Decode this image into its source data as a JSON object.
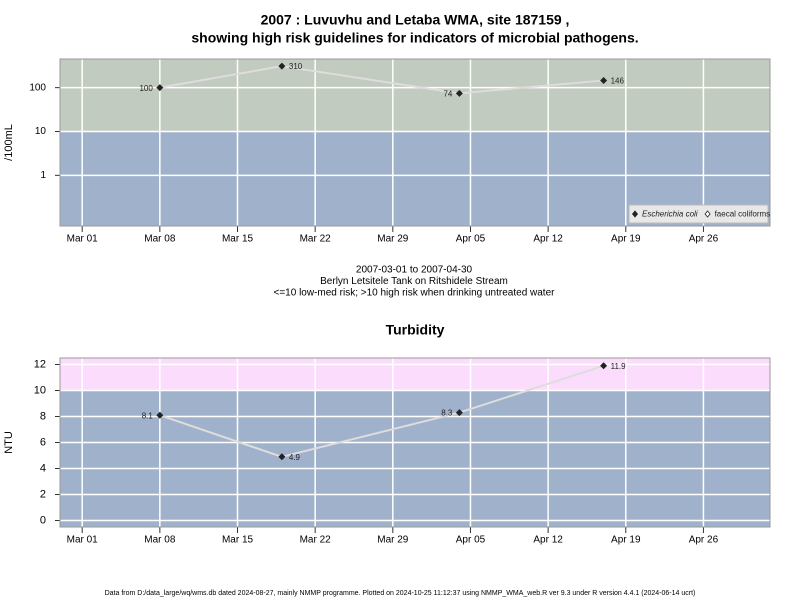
{
  "chart_data": [
    {
      "type": "line",
      "title": [
        "2007 : Luvuvhu and Letaba WMA, site 187159 ,",
        "showing high risk guidelines for indicators of microbial pathogens."
      ],
      "ylabel": "/100mL",
      "log_scale": true,
      "grid": true,
      "x": [
        "Mar 08",
        "Mar 19",
        "Apr 04",
        "Apr 17"
      ],
      "series": [
        {
          "name": "Escherichia coli",
          "color": "#222222",
          "line_color": "#dddddd",
          "values": [
            100,
            310,
            74,
            146
          ]
        },
        {
          "name": "faecal coliforms",
          "color": "#222222",
          "values": [
            null,
            null,
            null,
            null
          ]
        }
      ],
      "xlim": [
        "Feb 27",
        "May 02"
      ],
      "xticks": [
        "Mar 01",
        "Mar 08",
        "Mar 15",
        "Mar 22",
        "Mar 29",
        "Apr 05",
        "Apr 12",
        "Apr 19",
        "Apr 26"
      ],
      "ylim": [
        0.07,
        450
      ],
      "yticks": [
        1,
        10,
        100
      ],
      "threshold": 10,
      "band_colors": [
        "#a0b2cb",
        "#c2cbbf"
      ],
      "legend": "bottom-right",
      "notes": [
        "2007-03-01 to 2007-04-30",
        "Berlyn Letsitele Tank on Ritshidele Stream",
        "<=10 low-med risk; >10 high risk when drinking untreated water"
      ]
    },
    {
      "type": "line",
      "title": [
        "Turbidity"
      ],
      "ylabel": "NTU",
      "log_scale": false,
      "grid": true,
      "x": [
        "Mar 08",
        "Mar 19",
        "Apr 04",
        "Apr 17"
      ],
      "series": [
        {
          "color": "#222222",
          "line_color": "#dddddd",
          "values": [
            8.1,
            4.9,
            8.3,
            11.9
          ]
        }
      ],
      "xlim": [
        "Feb 27",
        "May 02"
      ],
      "xticks": [
        "Mar 01",
        "Mar 08",
        "Mar 15",
        "Mar 22",
        "Mar 29",
        "Apr 05",
        "Apr 12",
        "Apr 19",
        "Apr 26"
      ],
      "ylim": [
        -0.5,
        12.5
      ],
      "yticks": [
        0,
        2,
        4,
        6,
        8,
        10,
        12
      ],
      "threshold": 10,
      "band_colors": [
        "#a0b2cb",
        "#fcdcfc"
      ]
    }
  ],
  "footer": "Data from D:/data_large/wq/wms.db dated 2024-08-27, mainly NMMP programme. Plotted on 2024-10-25 11:12:37 using NMMP_WMA_web.R ver 9.3 under R version 4.4.1 (2024-06-14 ucrt)"
}
